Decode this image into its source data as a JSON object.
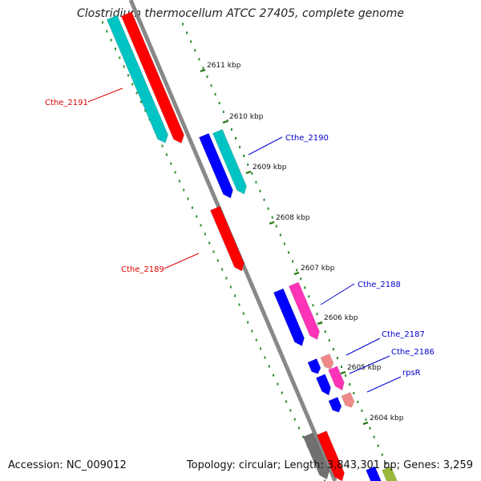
{
  "title": "Clostridium thermocellum ATCC 27405, complete genome",
  "footer": {
    "accession": "Accession: NC_009012",
    "summary": "Topology: circular; Length: 3,843,301 bp; Genes: 3,259"
  },
  "colors": {
    "backbone": "#888888",
    "forward_cds": "#ff0000",
    "reverse_cds": "#0000ff",
    "forward_homolog": "#00c4c4",
    "pink_gene": "#ff33b8",
    "light_pink_gene": "#f08a8a",
    "grey_gene": "#707070",
    "olive_gene": "#9ab93a",
    "tick": "#2e7d1e",
    "dot": "#2e8b2e",
    "label_red": "#e00000",
    "label_blue": "#0000cc"
  },
  "ticks": [
    {
      "label": "2611 kbp"
    },
    {
      "label": "2610 kbp"
    },
    {
      "label": "2609 kbp"
    },
    {
      "label": "2608 kbp"
    },
    {
      "label": "2607 kbp"
    },
    {
      "label": "2606 kbp"
    },
    {
      "label": "2605 kbp"
    },
    {
      "label": "2604 kbp"
    }
  ],
  "gene_labels": [
    {
      "name": "Cthe_2191",
      "color": "red"
    },
    {
      "name": "Cthe_2190",
      "color": "blue"
    },
    {
      "name": "Cthe_2189",
      "color": "red"
    },
    {
      "name": "Cthe_2188",
      "color": "blue"
    },
    {
      "name": "Cthe_2187",
      "color": "blue"
    },
    {
      "name": "Cthe_2186",
      "color": "blue"
    },
    {
      "name": "rpsR",
      "color": "blue"
    }
  ]
}
